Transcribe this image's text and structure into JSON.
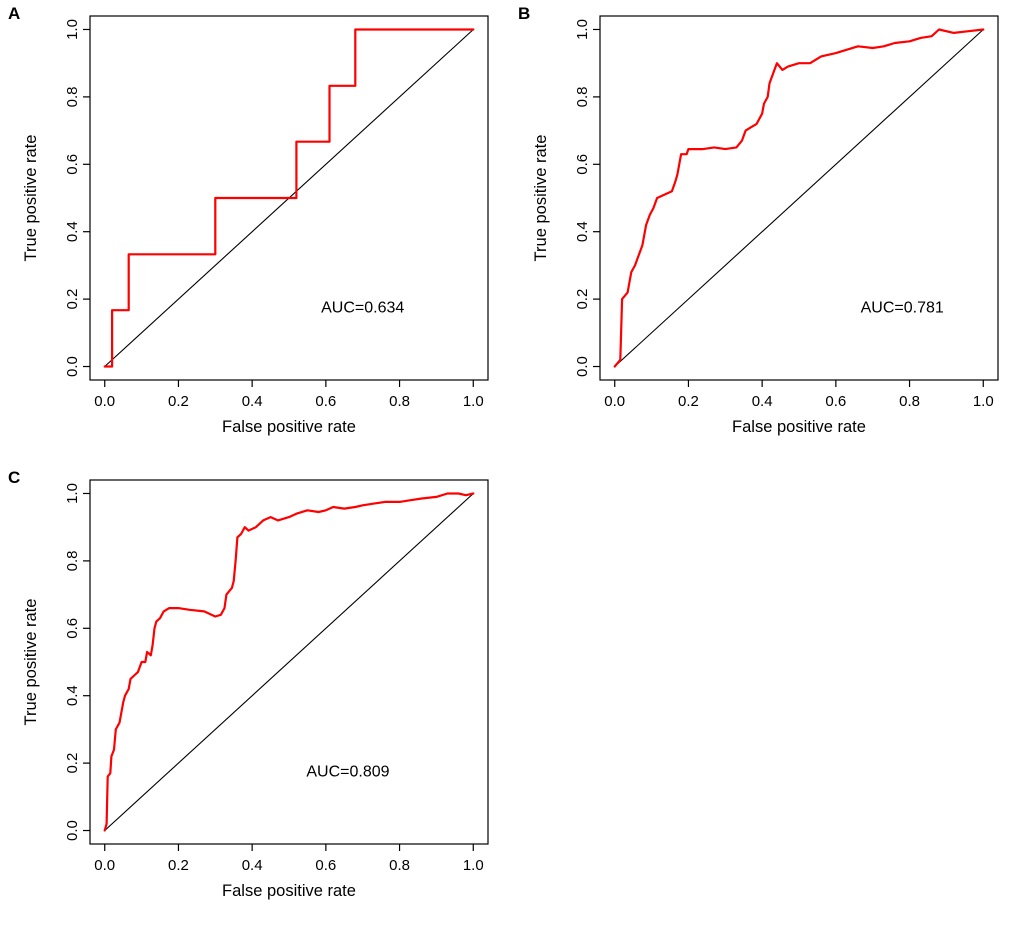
{
  "panels": [
    {
      "label": "A"
    },
    {
      "label": "B"
    },
    {
      "label": "C"
    }
  ],
  "colors": {
    "roc_curve": "#ff0000",
    "reference_line": "#000000",
    "background": "#ffffff"
  },
  "chart_data": [
    {
      "type": "line",
      "panel": "A",
      "title": "",
      "xlabel": "False positive rate",
      "ylabel": "True positive rate",
      "xlim": [
        0,
        1
      ],
      "ylim": [
        0,
        1
      ],
      "xticks": [
        0.0,
        0.2,
        0.4,
        0.6,
        0.8,
        1.0
      ],
      "yticks": [
        0.0,
        0.2,
        0.4,
        0.6,
        0.8,
        1.0
      ],
      "grid": false,
      "auc": 0.634,
      "annotation": "AUC=0.634",
      "annotation_x": 0.7,
      "annotation_y": 0.16,
      "series": [
        {
          "name": "reference",
          "color": "#000000",
          "points": [
            [
              0,
              0
            ],
            [
              1,
              1
            ]
          ]
        },
        {
          "name": "ROC",
          "color": "#ff0000",
          "points": [
            [
              0,
              0
            ],
            [
              0.02,
              0
            ],
            [
              0.02,
              0.167
            ],
            [
              0.065,
              0.167
            ],
            [
              0.065,
              0.333
            ],
            [
              0.3,
              0.333
            ],
            [
              0.3,
              0.5
            ],
            [
              0.52,
              0.5
            ],
            [
              0.52,
              0.667
            ],
            [
              0.61,
              0.667
            ],
            [
              0.61,
              0.833
            ],
            [
              0.68,
              0.833
            ],
            [
              0.68,
              1.0
            ],
            [
              1,
              1
            ]
          ]
        }
      ]
    },
    {
      "type": "line",
      "panel": "B",
      "title": "",
      "xlabel": "False positive rate",
      "ylabel": "True positive rate",
      "xlim": [
        0,
        1
      ],
      "ylim": [
        0,
        1
      ],
      "xticks": [
        0.0,
        0.2,
        0.4,
        0.6,
        0.8,
        1.0
      ],
      "yticks": [
        0.0,
        0.2,
        0.4,
        0.6,
        0.8,
        1.0
      ],
      "grid": false,
      "auc": 0.781,
      "annotation": "AUC=0.781",
      "annotation_x": 0.78,
      "annotation_y": 0.16,
      "series": [
        {
          "name": "reference",
          "color": "#000000",
          "points": [
            [
              0,
              0
            ],
            [
              1,
              1
            ]
          ]
        },
        {
          "name": "ROC",
          "color": "#ff0000",
          "points": [
            [
              0,
              0
            ],
            [
              0.015,
              0.02
            ],
            [
              0.02,
              0.2
            ],
            [
              0.035,
              0.22
            ],
            [
              0.045,
              0.28
            ],
            [
              0.055,
              0.3
            ],
            [
              0.065,
              0.33
            ],
            [
              0.075,
              0.36
            ],
            [
              0.085,
              0.42
            ],
            [
              0.095,
              0.45
            ],
            [
              0.105,
              0.47
            ],
            [
              0.115,
              0.5
            ],
            [
              0.135,
              0.51
            ],
            [
              0.155,
              0.52
            ],
            [
              0.165,
              0.55
            ],
            [
              0.17,
              0.57
            ],
            [
              0.18,
              0.63
            ],
            [
              0.195,
              0.63
            ],
            [
              0.2,
              0.645
            ],
            [
              0.24,
              0.645
            ],
            [
              0.27,
              0.65
            ],
            [
              0.3,
              0.645
            ],
            [
              0.33,
              0.65
            ],
            [
              0.345,
              0.67
            ],
            [
              0.355,
              0.7
            ],
            [
              0.37,
              0.71
            ],
            [
              0.385,
              0.72
            ],
            [
              0.4,
              0.75
            ],
            [
              0.405,
              0.78
            ],
            [
              0.415,
              0.8
            ],
            [
              0.42,
              0.84
            ],
            [
              0.43,
              0.87
            ],
            [
              0.44,
              0.9
            ],
            [
              0.455,
              0.88
            ],
            [
              0.47,
              0.89
            ],
            [
              0.5,
              0.9
            ],
            [
              0.53,
              0.9
            ],
            [
              0.56,
              0.92
            ],
            [
              0.6,
              0.93
            ],
            [
              0.63,
              0.94
            ],
            [
              0.66,
              0.95
            ],
            [
              0.7,
              0.945
            ],
            [
              0.73,
              0.95
            ],
            [
              0.76,
              0.96
            ],
            [
              0.8,
              0.965
            ],
            [
              0.83,
              0.975
            ],
            [
              0.86,
              0.98
            ],
            [
              0.88,
              1.0
            ],
            [
              0.92,
              0.99
            ],
            [
              0.96,
              0.995
            ],
            [
              1,
              1
            ]
          ]
        }
      ]
    },
    {
      "type": "line",
      "panel": "C",
      "title": "",
      "xlabel": "False positive rate",
      "ylabel": "True positive rate",
      "xlim": [
        0,
        1
      ],
      "ylim": [
        0,
        1
      ],
      "xticks": [
        0.0,
        0.2,
        0.4,
        0.6,
        0.8,
        1.0
      ],
      "yticks": [
        0.0,
        0.2,
        0.4,
        0.6,
        0.8,
        1.0
      ],
      "grid": false,
      "auc": 0.809,
      "annotation": "AUC=0.809",
      "annotation_x": 0.66,
      "annotation_y": 0.16,
      "series": [
        {
          "name": "reference",
          "color": "#000000",
          "points": [
            [
              0,
              0
            ],
            [
              1,
              1
            ]
          ]
        },
        {
          "name": "ROC",
          "color": "#ff0000",
          "points": [
            [
              0,
              0
            ],
            [
              0.005,
              0.02
            ],
            [
              0.008,
              0.16
            ],
            [
              0.015,
              0.17
            ],
            [
              0.018,
              0.22
            ],
            [
              0.025,
              0.24
            ],
            [
              0.03,
              0.3
            ],
            [
              0.04,
              0.32
            ],
            [
              0.05,
              0.38
            ],
            [
              0.055,
              0.4
            ],
            [
              0.065,
              0.42
            ],
            [
              0.07,
              0.45
            ],
            [
              0.08,
              0.46
            ],
            [
              0.09,
              0.47
            ],
            [
              0.1,
              0.5
            ],
            [
              0.11,
              0.5
            ],
            [
              0.115,
              0.53
            ],
            [
              0.125,
              0.52
            ],
            [
              0.13,
              0.55
            ],
            [
              0.135,
              0.6
            ],
            [
              0.14,
              0.62
            ],
            [
              0.15,
              0.63
            ],
            [
              0.16,
              0.65
            ],
            [
              0.175,
              0.66
            ],
            [
              0.2,
              0.66
            ],
            [
              0.23,
              0.655
            ],
            [
              0.27,
              0.65
            ],
            [
              0.3,
              0.635
            ],
            [
              0.315,
              0.64
            ],
            [
              0.325,
              0.66
            ],
            [
              0.33,
              0.7
            ],
            [
              0.345,
              0.72
            ],
            [
              0.35,
              0.74
            ],
            [
              0.355,
              0.8
            ],
            [
              0.36,
              0.87
            ],
            [
              0.37,
              0.88
            ],
            [
              0.38,
              0.9
            ],
            [
              0.39,
              0.89
            ],
            [
              0.41,
              0.9
            ],
            [
              0.43,
              0.92
            ],
            [
              0.45,
              0.93
            ],
            [
              0.47,
              0.92
            ],
            [
              0.5,
              0.93
            ],
            [
              0.52,
              0.94
            ],
            [
              0.55,
              0.95
            ],
            [
              0.58,
              0.945
            ],
            [
              0.6,
              0.95
            ],
            [
              0.62,
              0.96
            ],
            [
              0.65,
              0.955
            ],
            [
              0.68,
              0.96
            ],
            [
              0.7,
              0.965
            ],
            [
              0.73,
              0.97
            ],
            [
              0.76,
              0.975
            ],
            [
              0.8,
              0.975
            ],
            [
              0.83,
              0.98
            ],
            [
              0.86,
              0.985
            ],
            [
              0.9,
              0.99
            ],
            [
              0.93,
              1.0
            ],
            [
              0.96,
              1.0
            ],
            [
              0.98,
              0.995
            ],
            [
              1,
              1
            ]
          ]
        }
      ]
    }
  ]
}
